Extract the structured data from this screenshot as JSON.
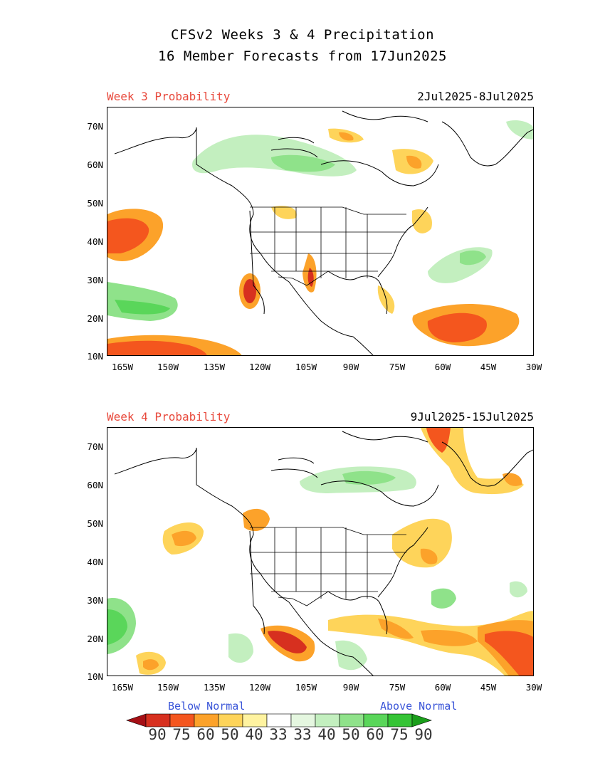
{
  "header": {
    "title_line1": "CFSv2 Weeks 3 & 4 Precipitation",
    "title_line2": "16 Member Forecasts from 17Jun2025"
  },
  "panels": [
    {
      "label": "Week 3 Probability",
      "dates": "2Jul2025-8Jul2025"
    },
    {
      "label": "Week 4 Probability",
      "dates": "9Jul2025-15Jul2025"
    }
  ],
  "axes": {
    "lat_labels": [
      "70N",
      "60N",
      "50N",
      "40N",
      "30N",
      "20N",
      "10N"
    ],
    "lon_labels": [
      "165W",
      "150W",
      "135W",
      "120W",
      "105W",
      "90W",
      "75W",
      "60W",
      "45W",
      "30W"
    ]
  },
  "colorbar": {
    "below_label": "Below Normal",
    "above_label": "Above Normal",
    "tick_labels": [
      "90",
      "75",
      "60",
      "50",
      "40",
      "33",
      "33",
      "40",
      "50",
      "60",
      "75",
      "90"
    ],
    "below_colors": [
      "#a50f15",
      "#d7301f",
      "#f4561e",
      "#fca22a",
      "#fed45a",
      "#fff3a0"
    ],
    "neutral_color": "#ffffff",
    "above_colors": [
      "#e5f7e0",
      "#c3efbf",
      "#8fe28a",
      "#5ad65a",
      "#35c435",
      "#1a9e1a"
    ]
  },
  "colors": {
    "title_label": "#e8493c",
    "normal_label": "#3a55d8"
  }
}
